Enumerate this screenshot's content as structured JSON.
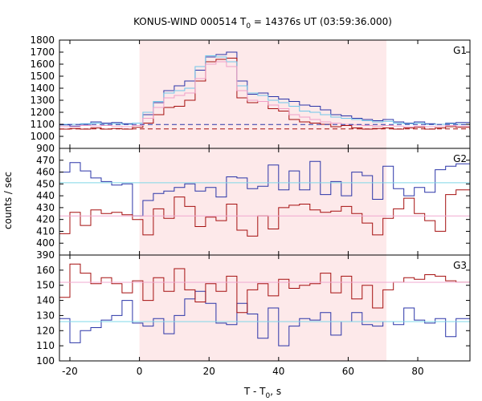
{
  "title_main": "KONUS-WIND 000514 T",
  "title_sub": "0",
  "title_tail": " = 14376s UT (03:59:36.000)",
  "ylabel": "counts / sec",
  "xlabel_main": "T - T",
  "xlabel_sub": "0",
  "xlabel_tail": ", s",
  "colors": {
    "highlight": "#fde9ea",
    "blue": "#2b35a8",
    "red": "#a50f0f",
    "lightblue": "#6fc7ea",
    "pink": "#f0a0c8",
    "cyan": "#7fd8e8",
    "pinkline": "#f0a8d0"
  },
  "chart_data": {
    "type": "line",
    "x_range": [
      -23,
      95
    ],
    "x_ticks": [
      -20,
      0,
      20,
      40,
      60,
      80
    ],
    "highlight_interval": [
      0,
      71
    ],
    "panels": [
      {
        "label": "G1",
        "ylim": [
          900,
          1800
        ],
        "yticks": [
          900,
          1000,
          1100,
          1200,
          1300,
          1400,
          1500,
          1600,
          1700,
          1800
        ],
        "bin_edges": [
          -23,
          -20,
          -17,
          -14,
          -11,
          -8,
          -5,
          -2,
          1,
          4,
          7,
          10,
          13,
          16,
          19,
          22,
          25,
          28,
          31,
          34,
          37,
          40,
          43,
          46,
          49,
          52,
          55,
          58,
          61,
          64,
          67,
          70,
          73,
          76,
          79,
          82,
          85,
          88,
          91,
          95
        ],
        "series": [
          {
            "color": "blue",
            "style": "step",
            "values": [
              1095,
              1085,
              1100,
              1120,
              1110,
              1115,
              1105,
              1110,
              1180,
              1280,
              1380,
              1420,
              1460,
              1550,
              1660,
              1680,
              1700,
              1460,
              1350,
              1360,
              1330,
              1310,
              1290,
              1260,
              1250,
              1220,
              1180,
              1170,
              1150,
              1140,
              1130,
              1140,
              1120,
              1110,
              1120,
              1105,
              1100,
              1110,
              1115
            ]
          },
          {
            "color": "red",
            "style": "step",
            "values": [
              1060,
              1065,
              1060,
              1070,
              1060,
              1065,
              1060,
              1075,
              1110,
              1180,
              1240,
              1250,
              1300,
              1460,
              1620,
              1640,
              1650,
              1320,
              1280,
              1290,
              1230,
              1210,
              1140,
              1120,
              1110,
              1100,
              1080,
              1090,
              1070,
              1060,
              1065,
              1070,
              1060,
              1070,
              1075,
              1060,
              1070,
              1080,
              1075
            ]
          },
          {
            "color": "lightblue",
            "style": "step",
            "values": [
              1100,
              1100,
              1105,
              1110,
              1100,
              1105,
              1100,
              1110,
              1200,
              1290,
              1360,
              1380,
              1400,
              1580,
              1670,
              1660,
              1620,
              1420,
              1360,
              1340,
              1300,
              1280,
              1250,
              1210,
              1200,
              1180,
              1160,
              1150,
              1140,
              1130,
              1120,
              1125,
              1110,
              1105,
              1110,
              1100,
              1100,
              1105,
              1100
            ]
          },
          {
            "color": "pink",
            "style": "step",
            "values": [
              1080,
              1080,
              1090,
              1085,
              1090,
              1085,
              1080,
              1090,
              1150,
              1240,
              1320,
              1340,
              1360,
              1480,
              1600,
              1620,
              1580,
              1380,
              1300,
              1290,
              1260,
              1230,
              1180,
              1160,
              1140,
              1120,
              1110,
              1100,
              1095,
              1090,
              1085,
              1090,
              1085,
              1080,
              1085,
              1080,
              1085,
              1090,
              1085
            ]
          },
          {
            "color": "blue",
            "style": "dashed",
            "from": [
              -23,
              1098
            ],
            "to": [
              95,
              1098
            ]
          },
          {
            "color": "red",
            "style": "dashed",
            "from": [
              -23,
              1062
            ],
            "to": [
              95,
              1062
            ]
          }
        ]
      },
      {
        "label": "G2",
        "ylim": [
          390,
          480
        ],
        "yticks": [
          390,
          400,
          410,
          420,
          430,
          440,
          450,
          460,
          470
        ],
        "bin_edges": [
          -23,
          -20,
          -17,
          -14,
          -11,
          -8,
          -5,
          -2,
          1,
          4,
          7,
          10,
          13,
          16,
          19,
          22,
          25,
          28,
          31,
          34,
          37,
          40,
          43,
          46,
          49,
          52,
          55,
          58,
          61,
          64,
          67,
          70,
          73,
          76,
          79,
          82,
          85,
          88,
          91,
          95
        ],
        "series": [
          {
            "color": "blue",
            "style": "step",
            "values": [
              460,
              468,
              461,
              455,
              452,
              449,
              450,
              423,
              436,
              442,
              444,
              447,
              450,
              444,
              447,
              439,
              456,
              455,
              446,
              448,
              466,
              445,
              461,
              445,
              469,
              441,
              452,
              440,
              460,
              457,
              437,
              465,
              446,
              440,
              447,
              443,
              462,
              465,
              467
            ]
          },
          {
            "color": "red",
            "style": "step",
            "values": [
              408,
              426,
              415,
              428,
              425,
              426,
              424,
              420,
              407,
              429,
              421,
              439,
              431,
              414,
              422,
              419,
              433,
              411,
              406,
              423,
              412,
              430,
              432,
              433,
              428,
              426,
              427,
              431,
              425,
              417,
              407,
              421,
              429,
              438,
              425,
              419,
              410,
              441,
              445
            ]
          },
          {
            "color": "cyan",
            "style": "flat",
            "from": [
              -23,
              451
            ],
            "to": [
              95,
              451
            ]
          },
          {
            "color": "pinkline",
            "style": "flat",
            "from": [
              -23,
              423
            ],
            "to": [
              95,
              423
            ]
          }
        ]
      },
      {
        "label": "G3",
        "ylim": [
          100,
          170
        ],
        "yticks": [
          100,
          110,
          120,
          130,
          140,
          150,
          160
        ],
        "bin_edges": [
          -23,
          -20,
          -17,
          -14,
          -11,
          -8,
          -5,
          -2,
          1,
          4,
          7,
          10,
          13,
          16,
          19,
          22,
          25,
          28,
          31,
          34,
          37,
          40,
          43,
          46,
          49,
          52,
          55,
          58,
          61,
          64,
          67,
          70,
          73,
          76,
          79,
          82,
          85,
          88,
          91,
          95
        ],
        "series": [
          {
            "color": "blue",
            "style": "step",
            "values": [
              128,
              112,
              120,
              122,
              127,
              130,
              140,
              125,
              123,
              128,
              118,
              130,
              141,
              146,
              138,
              125,
              124,
              138,
              131,
              115,
              135,
              110,
              123,
              128,
              127,
              132,
              117,
              126,
              132,
              124,
              123,
              126,
              124,
              135,
              127,
              125,
              128,
              116,
              128
            ]
          },
          {
            "color": "red",
            "style": "step",
            "values": [
              142,
              164,
              158,
              151,
              155,
              151,
              145,
              153,
              140,
              155,
              146,
              161,
              147,
              139,
              151,
              146,
              156,
              132,
              147,
              151,
              143,
              154,
              148,
              150,
              151,
              158,
              145,
              156,
              141,
              150,
              135,
              147,
              152,
              155,
              154,
              157,
              156,
              153,
              152
            ]
          },
          {
            "color": "cyan",
            "style": "flat",
            "from": [
              -23,
              126
            ],
            "to": [
              95,
              126
            ]
          },
          {
            "color": "pinkline",
            "style": "flat",
            "from": [
              -23,
              152
            ],
            "to": [
              95,
              152
            ]
          }
        ]
      }
    ]
  }
}
